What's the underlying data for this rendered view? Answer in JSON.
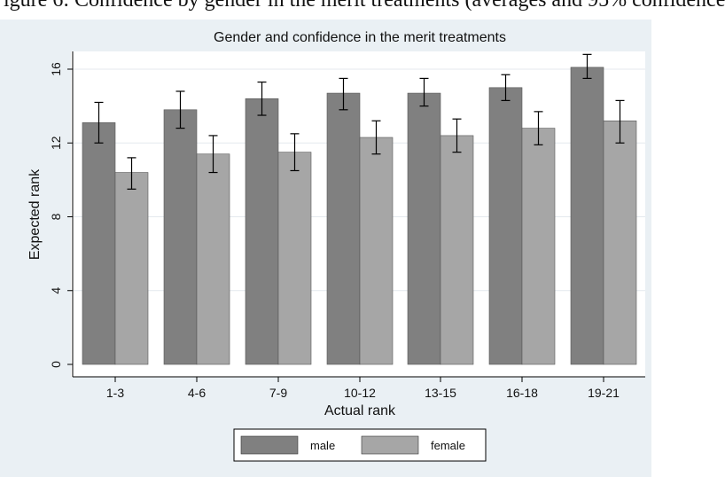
{
  "cropped_header_text": "igure 6: Confidence by gender in the merit treatments (averages and 95% confidence",
  "colors": {
    "background": "#eaf0f4",
    "plot_bg": "#ffffff",
    "male": "#808080",
    "female": "#a6a6a6",
    "gridline": "#e4e9ee",
    "error_bar": "#000000"
  },
  "chart_data": {
    "type": "bar",
    "title": "Gender and confidence in the merit treatments",
    "xlabel": "Actual rank",
    "ylabel": "Expected rank",
    "categories": [
      "1-3",
      "4-6",
      "7-9",
      "10-12",
      "13-15",
      "16-18",
      "19-21"
    ],
    "ylim": [
      0,
      17.5
    ],
    "yticks": [
      0,
      4,
      8,
      12,
      16
    ],
    "grid": true,
    "legend_position": "bottom",
    "series": [
      {
        "name": "male",
        "values": [
          13.1,
          13.8,
          14.4,
          14.7,
          14.7,
          15.0,
          16.1
        ],
        "ci_low": [
          12.0,
          12.8,
          13.5,
          13.8,
          14.0,
          14.3,
          15.5
        ],
        "ci_high": [
          14.2,
          14.8,
          15.3,
          15.5,
          15.5,
          15.7,
          16.8
        ]
      },
      {
        "name": "female",
        "values": [
          10.4,
          11.4,
          11.5,
          12.3,
          12.4,
          12.8,
          13.2
        ],
        "ci_low": [
          9.5,
          10.4,
          10.5,
          11.4,
          11.5,
          11.9,
          12.0
        ],
        "ci_high": [
          11.2,
          12.4,
          12.5,
          13.2,
          13.3,
          13.7,
          14.3
        ]
      }
    ]
  }
}
